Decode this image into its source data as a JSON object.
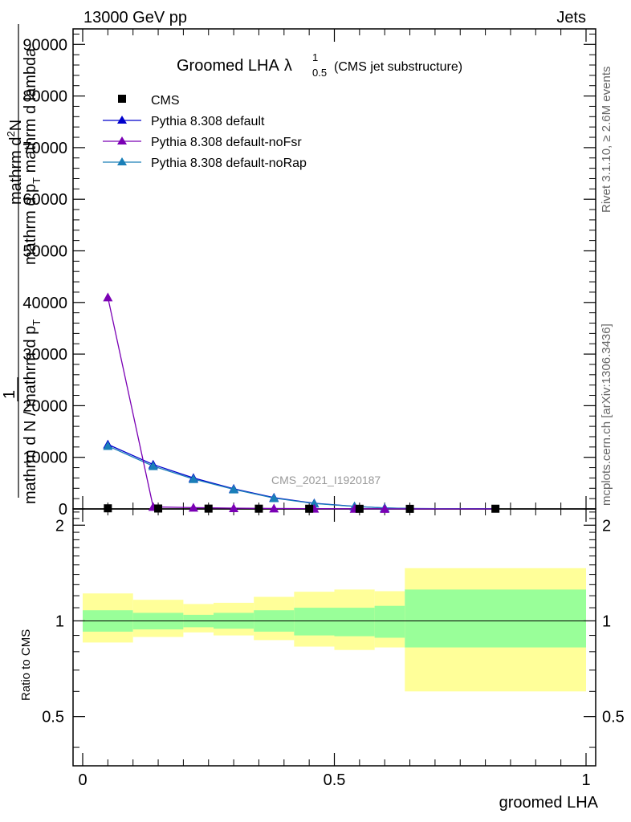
{
  "header": {
    "left": "13000 GeV pp",
    "right": "Jets"
  },
  "title": {
    "main": "Groomed LHA",
    "symbol": "λ",
    "sup": "1",
    "sub": "0.5",
    "note": "(CMS jet substructure)"
  },
  "side_labels": {
    "rivet": "Rivet 3.1.10, ≥ 2.6M events",
    "mcplots": "mcplots.cern.ch [arXiv:1306.3436]"
  },
  "watermark": "CMS_2021_I1920187",
  "ylabel_main": {
    "line1": "mathrm d",
    "line1_sup": "2",
    "line1b": "N",
    "line2": "mathrm d p",
    "line2_sub": "T",
    "line2b": " mathrm d lambda",
    "prefix": "1",
    "denominator": "mathrm d N / mathrm d p",
    "denominator_sub": "T"
  },
  "ylabel_ratio": "Ratio to CMS",
  "xlabel": "groomed LHA",
  "colors": {
    "cms": "#000000",
    "default": "#0000cc",
    "noFsr": "#7a00b4",
    "noRap": "#1a7fb8",
    "band_inner": "#99ff99",
    "band_outer": "#ffff99"
  },
  "chart_data": {
    "type": "line",
    "x_edges": [
      0,
      0.1,
      0.2,
      0.3,
      0.4,
      0.5,
      0.6,
      1.0
    ],
    "x_centers": [
      0.05,
      0.15,
      0.25,
      0.35,
      0.45,
      0.55,
      0.65,
      0.8
    ],
    "xlim": [
      0,
      1
    ],
    "main": {
      "ylim": [
        0,
        93000
      ],
      "yticks": [
        0,
        10000,
        20000,
        30000,
        40000,
        50000,
        60000,
        70000,
        80000,
        90000
      ],
      "ytick_labels": [
        "0",
        "10000",
        "20000",
        "30000",
        "40000",
        "50000",
        "60000",
        "70000",
        "80000",
        "90000"
      ]
    },
    "ratio": {
      "ylim": [
        0.35,
        2.25
      ],
      "yticks": [
        0.5,
        1,
        2
      ],
      "ytick_labels": [
        "0.5",
        "1",
        "2"
      ],
      "band_inner": [
        [
          0.925,
          1.08
        ],
        [
          0.94,
          1.06
        ],
        [
          0.955,
          1.045
        ],
        [
          0.945,
          1.06
        ],
        [
          0.925,
          1.08
        ],
        [
          0.9,
          1.1
        ],
        [
          0.895,
          1.1
        ],
        [
          0.885,
          1.115
        ],
        [
          0.825,
          1.255
        ]
      ],
      "band_outer": [
        [
          0.855,
          1.22
        ],
        [
          0.89,
          1.165
        ],
        [
          0.92,
          1.13
        ],
        [
          0.9,
          1.14
        ],
        [
          0.87,
          1.19
        ],
        [
          0.83,
          1.235
        ],
        [
          0.81,
          1.255
        ],
        [
          0.825,
          1.24
        ],
        [
          0.6,
          1.465
        ]
      ],
      "band_edges": [
        0,
        0.1,
        0.2,
        0.3,
        0.4,
        0.5,
        0.6,
        0.64,
        0.64,
        1.0
      ]
    },
    "xticks": [
      0,
      0.5,
      1
    ],
    "xtick_labels": [
      "0",
      "0.5",
      "1"
    ],
    "series": [
      {
        "name": "CMS",
        "marker": "square",
        "x": [
          0.05,
          0.15,
          0.25,
          0.35,
          0.45,
          0.55,
          0.65,
          0.82
        ],
        "values": [
          120,
          80,
          60,
          50,
          40,
          30,
          20,
          40
        ]
      },
      {
        "name": "Pythia 8.308 default",
        "marker": "triangle",
        "x": [
          0.05,
          0.14,
          0.22,
          0.3,
          0.38,
          0.46,
          0.54,
          0.6,
          0.65,
          0.82
        ],
        "values": [
          12500,
          8600,
          6000,
          3900,
          2200,
          1100,
          500,
          200,
          80,
          20
        ]
      },
      {
        "name": "Pythia 8.308 default-noFsr",
        "marker": "triangle",
        "x": [
          0.05,
          0.14,
          0.22,
          0.3,
          0.38,
          0.46,
          0.54,
          0.6,
          0.65,
          0.82
        ],
        "values": [
          41000,
          400,
          250,
          150,
          90,
          50,
          30,
          20,
          10,
          5
        ]
      },
      {
        "name": "Pythia 8.308 default-noRap",
        "marker": "triangle",
        "x": [
          0.05,
          0.14,
          0.22,
          0.3,
          0.38,
          0.46,
          0.54,
          0.6,
          0.65,
          0.82
        ],
        "values": [
          12200,
          8300,
          5800,
          3800,
          2100,
          1050,
          480,
          190,
          70,
          18
        ]
      }
    ]
  }
}
